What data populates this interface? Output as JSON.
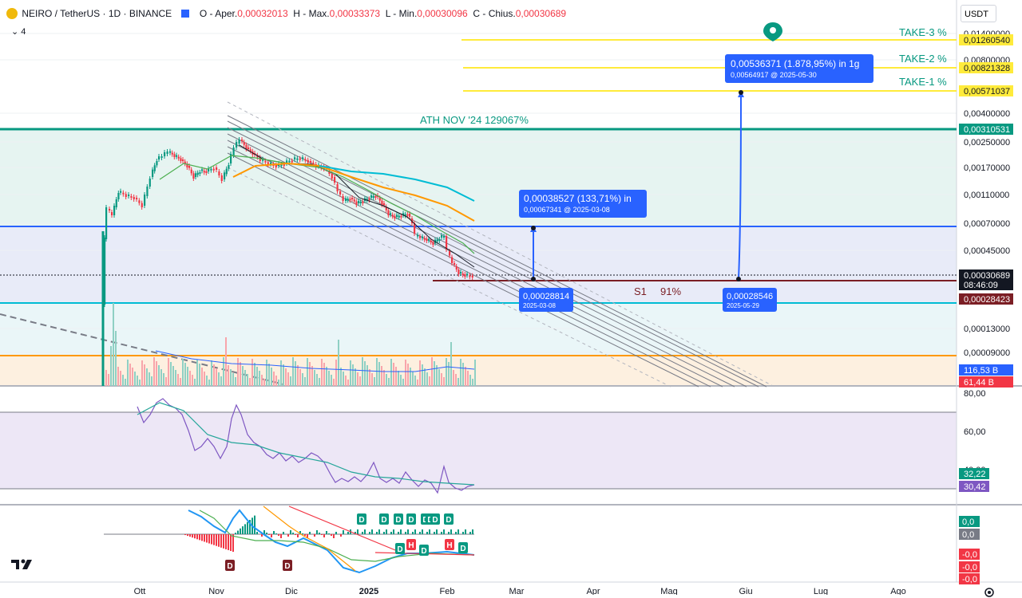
{
  "legend": {
    "symbol": "NEIRO / TetherUS · 1D · BINANCE",
    "open_label": "O - Aper.",
    "open": "0,00032013",
    "high_label": "H - Max.",
    "high": "0,00033373",
    "low_label": "L - Min.",
    "low": "0,00030096",
    "close_label": "C - Chius.",
    "close": "0,00030689",
    "indicators_count": "4"
  },
  "currency_select": "USDT",
  "price_scale": {
    "ticks": [
      "0,01400000",
      "0,00800000",
      "0,00400000",
      "0,00250000",
      "0,00170000",
      "0,00110000",
      "0,00070000",
      "0,00045000",
      "0,00013000",
      "0,00009000"
    ],
    "badges": [
      {
        "text": "0,01260540",
        "bg": "#ffeb3b",
        "color": "#131722"
      },
      {
        "text": "0,00821328",
        "bg": "#ffeb3b",
        "color": "#131722"
      },
      {
        "text": "0,00571037",
        "bg": "#ffeb3b",
        "color": "#131722"
      },
      {
        "text": "0,00310531",
        "bg": "#089981",
        "color": "#ffffff"
      },
      {
        "text": "0,00030689",
        "bg": "#131722",
        "color": "#ffffff"
      },
      {
        "text": "08:46:09",
        "bg": "#131722",
        "color": "#ffffff"
      },
      {
        "text": "0,00028423",
        "bg": "#7b1e24",
        "color": "#ffffff"
      },
      {
        "text": "116,53 B",
        "bg": "#2962ff",
        "color": "#ffffff"
      },
      {
        "text": "61,44 B",
        "bg": "#f23645",
        "color": "#ffffff"
      }
    ]
  },
  "annotations": {
    "take3": "TAKE-3  %",
    "take2": "TAKE-2  %",
    "take1": "TAKE-1  %",
    "ath": "ATH NOV '24  129067%",
    "s1": "S1",
    "s1_pct": "91%"
  },
  "measure_boxes": {
    "target_big": {
      "line1": "0,00536371 (1.878,95%) in 1g",
      "line2": "0,00564917 @ 2025-05-30"
    },
    "target_small": {
      "line1": "0,00038527 (133,71%) in",
      "line2": "0,00067341 @ 2025-03-08"
    },
    "start_a": {
      "line1": "0,00028814",
      "line2": "2025-03-08"
    },
    "start_b": {
      "line1": "0,00028546",
      "line2": "2025-05-29"
    }
  },
  "rsi_scale": {
    "ticks": [
      "80,00",
      "60,00",
      "40,00"
    ],
    "badges": [
      {
        "text": "32,22",
        "bg": "#089981"
      },
      {
        "text": "30,42",
        "bg": "#7e57c2"
      }
    ]
  },
  "macd_scale": {
    "badges": [
      {
        "text": "0,0",
        "bg": "#089981"
      },
      {
        "text": "0,0",
        "bg": "#787b86"
      },
      {
        "text": "-0,0",
        "bg": "#f23645"
      },
      {
        "text": "-0,0",
        "bg": "#f23645"
      },
      {
        "text": "-0,0",
        "bg": "#f23645"
      }
    ]
  },
  "time_axis": [
    "Ott",
    "Nov",
    "Dic",
    "2025",
    "Feb",
    "Mar",
    "Apr",
    "Mag",
    "Giu",
    "Lug",
    "Ago"
  ],
  "signals": {
    "d": "D",
    "h": "H"
  },
  "colors": {
    "up": "#089981",
    "down": "#f23645",
    "take": "#ffeb3b",
    "ath": "#089981",
    "support_blue": "#2962ff",
    "s1": "#7b1e24",
    "cyan": "#00bcd4",
    "orange": "#ff9800",
    "ema_fast": "#131722",
    "ema_mid": "#4caf50",
    "ema_slow": "#ff9800",
    "ema_200": "#00bcd4",
    "rsi": "#7e57c2",
    "rsi_ma": "#26a69a"
  },
  "chart_data": {
    "type": "candlestick",
    "pair": "NEIRO/USDT",
    "timeframe": "1D",
    "last_ohlc": {
      "open": 0.00032013,
      "high": 0.00033373,
      "low": 0.00030096,
      "close": 0.00030689
    },
    "horizontal_levels": [
      {
        "name": "TAKE-3",
        "value": 0.0126054
      },
      {
        "name": "TAKE-2",
        "value": 0.00821328
      },
      {
        "name": "TAKE-1",
        "value": 0.00571037
      },
      {
        "name": "ATH NOV '24",
        "value": 0.00310531
      },
      {
        "name": "S1",
        "value": 0.00028423
      }
    ],
    "projections": [
      {
        "from": 0.00028814,
        "to": 0.00067341,
        "date": "2025-03-08",
        "change": "0,00038527 (133,71%)"
      },
      {
        "from": 0.00028546,
        "to": 0.00564917,
        "date": "2025-05-30",
        "change": "0,00536371 (1.878,95%)"
      }
    ],
    "close_trend": [
      [
        "Ott",
        0.0004
      ],
      [
        "Ott",
        0.0011
      ],
      [
        "Ott",
        0.0013
      ],
      [
        "Ott",
        0.0018
      ],
      [
        "Nov",
        0.0016
      ],
      [
        "Nov",
        0.0024
      ],
      [
        "Nov",
        0.0021
      ],
      [
        "Dic",
        0.002
      ],
      [
        "Dic",
        0.0019
      ],
      [
        "Dic",
        0.0017
      ],
      [
        "2025",
        0.0011
      ],
      [
        "2025",
        0.00095
      ],
      [
        "Feb",
        0.0006
      ],
      [
        "Feb",
        0.00045
      ],
      [
        "Feb",
        0.00030689
      ]
    ],
    "rsi": {
      "values": [
        32.22,
        30.42
      ],
      "ylim": [
        20,
        90
      ]
    },
    "price_scale_type": "log"
  }
}
